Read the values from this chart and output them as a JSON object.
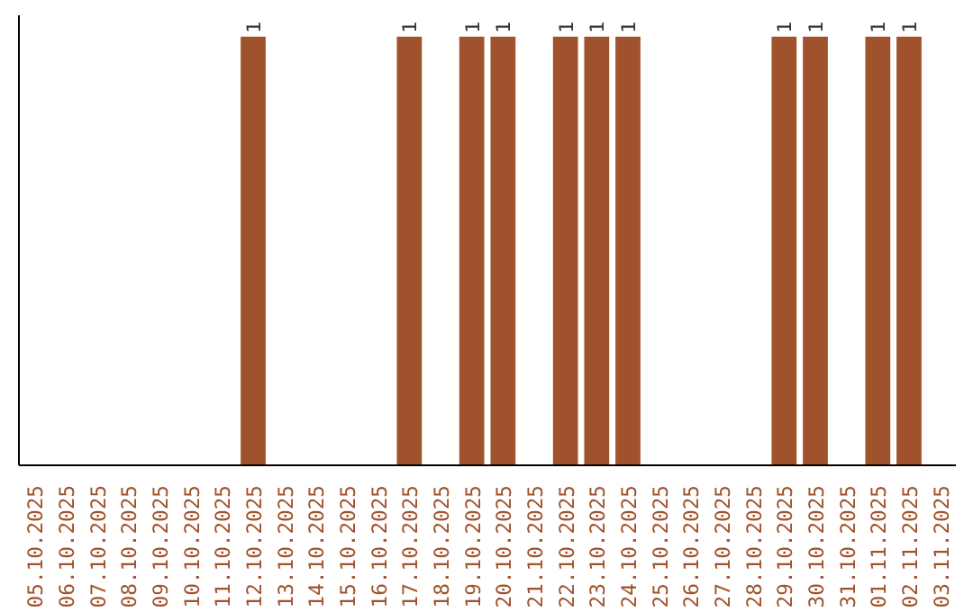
{
  "chart_data": {
    "type": "bar",
    "categories": [
      "05.10.2025",
      "06.10.2025",
      "07.10.2025",
      "08.10.2025",
      "09.10.2025",
      "10.10.2025",
      "11.10.2025",
      "12.10.2025",
      "13.10.2025",
      "14.10.2025",
      "15.10.2025",
      "16.10.2025",
      "17.10.2025",
      "18.10.2025",
      "19.10.2025",
      "20.10.2025",
      "21.10.2025",
      "22.10.2025",
      "23.10.2025",
      "24.10.2025",
      "25.10.2025",
      "26.10.2025",
      "27.10.2025",
      "28.10.2025",
      "29.10.2025",
      "30.10.2025",
      "31.10.2025",
      "01.11.2025",
      "02.11.2025",
      "03.11.2025"
    ],
    "values": [
      0,
      0,
      0,
      0,
      0,
      0,
      0,
      1,
      0,
      0,
      0,
      0,
      1,
      0,
      1,
      1,
      0,
      1,
      1,
      1,
      0,
      0,
      0,
      0,
      1,
      1,
      0,
      1,
      1,
      0
    ],
    "value_labels": [
      null,
      null,
      null,
      null,
      null,
      null,
      null,
      "1",
      null,
      null,
      null,
      null,
      "1",
      null,
      "1",
      "1",
      null,
      "1",
      "1",
      "1",
      null,
      null,
      null,
      null,
      "1",
      "1",
      null,
      "1",
      "1",
      null
    ],
    "color": "#a0522d",
    "grid": false
  }
}
